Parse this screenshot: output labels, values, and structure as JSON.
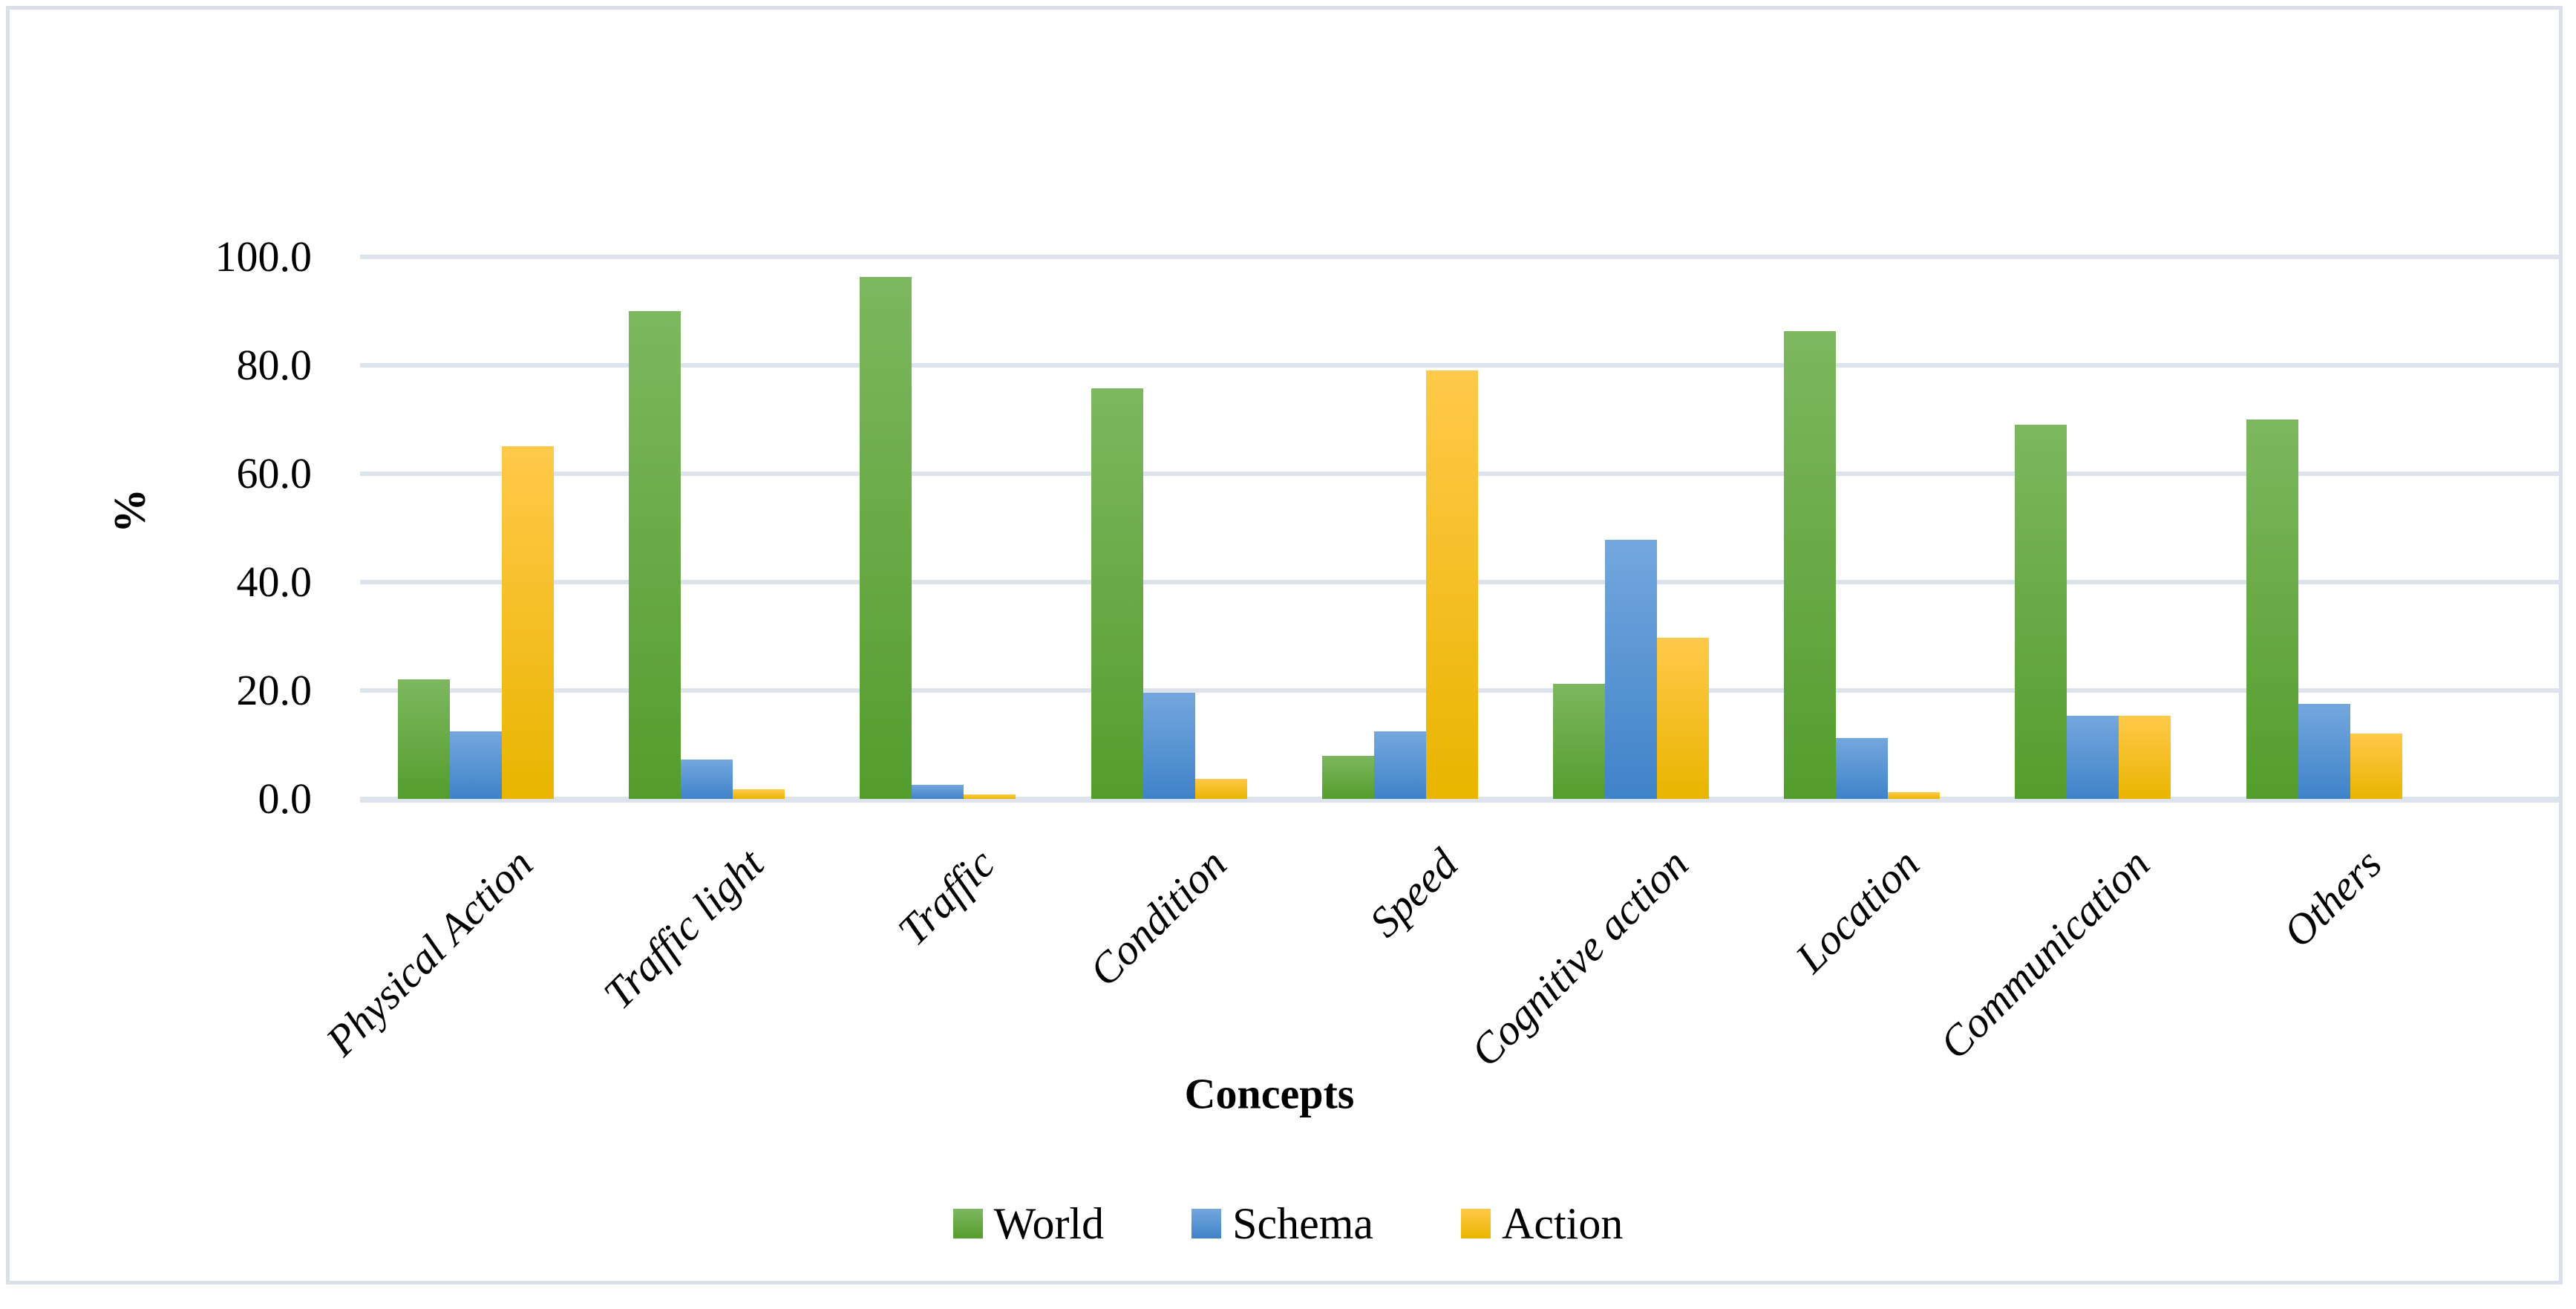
{
  "chart_data": {
    "type": "bar",
    "title": "",
    "xlabel": "Concepts",
    "ylabel": "%",
    "ylim": [
      0,
      100
    ],
    "ytick_step": 20,
    "ytick_labels": [
      "100.0",
      "80.0",
      "60.0",
      "40.0",
      "20.0",
      "0.0"
    ],
    "grid": true,
    "legend_position": "bottom-center",
    "gridline_color": "#dde3ed",
    "frame_color": "#d9dfe9",
    "categories": [
      "Physical Action",
      "Traffic light",
      "Traffic",
      "Condition",
      "Speed",
      "Cognitive action",
      "Location",
      "Communication",
      "Others"
    ],
    "series": [
      {
        "name": "World",
        "color_top": "#7db75f",
        "color_bottom": "#549d2d",
        "values": [
          22.0,
          90.0,
          96.3,
          75.7,
          8.0,
          21.3,
          86.3,
          69.0,
          70.0
        ]
      },
      {
        "name": "Schema",
        "color_top": "#74a7de",
        "color_bottom": "#3f83c8",
        "values": [
          12.5,
          7.3,
          2.6,
          19.6,
          12.4,
          47.8,
          11.3,
          15.3,
          17.5
        ]
      },
      {
        "name": "Action",
        "color_top": "#ffc94a",
        "color_bottom": "#e9b500",
        "values": [
          65.0,
          1.8,
          0.8,
          3.7,
          79.0,
          29.7,
          1.2,
          15.3,
          12.0
        ]
      }
    ]
  }
}
